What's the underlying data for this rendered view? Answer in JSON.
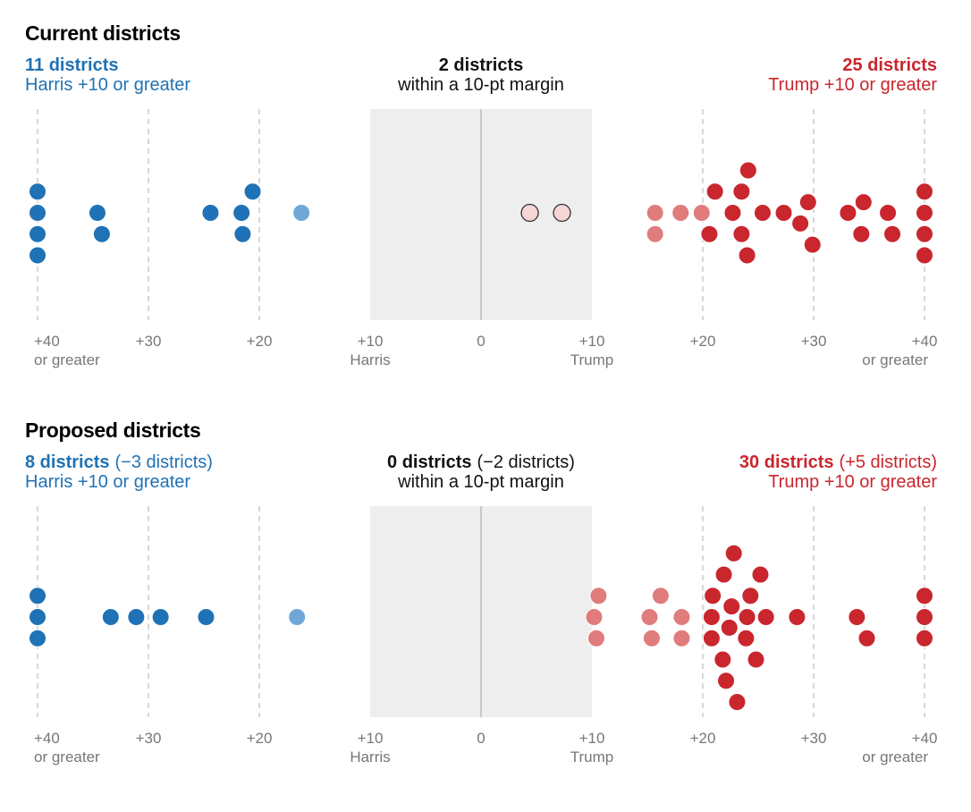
{
  "chart_data": [
    {
      "type": "scatter",
      "title": "Current districts",
      "left": {
        "count": "11 districts",
        "change": "",
        "desc": "Harris +10 or greater"
      },
      "middle": {
        "count": "2 districts",
        "change": "",
        "desc": "within a 10-pt margin"
      },
      "right": {
        "count": "25 districts",
        "change": "",
        "desc": "Trump +10 or greater"
      },
      "xlim": [
        -40,
        40
      ],
      "ticks": [
        {
          "v": -40,
          "l1": "+40",
          "l2": "or greater"
        },
        {
          "v": -30,
          "l1": "+30",
          "l2": ""
        },
        {
          "v": -20,
          "l1": "+20",
          "l2": ""
        },
        {
          "v": -10,
          "l1": "+10",
          "l2": "Harris"
        },
        {
          "v": 0,
          "l1": "0",
          "l2": ""
        },
        {
          "v": 10,
          "l1": "+10",
          "l2": "Trump"
        },
        {
          "v": 20,
          "l1": "+20",
          "l2": ""
        },
        {
          "v": 30,
          "l1": "+30",
          "l2": ""
        },
        {
          "v": 40,
          "l1": "+40",
          "l2": "or greater"
        }
      ],
      "values": [
        -40,
        -40,
        -40,
        -40,
        -34.6,
        -34.2,
        -24.4,
        -21.5,
        -21.6,
        -20.6,
        -16.2,
        4.4,
        7.3,
        15.7,
        15.7,
        18.0,
        19.9,
        20.6,
        21.1,
        22.7,
        23.5,
        24.0,
        24.1,
        23.5,
        25.4,
        27.3,
        28.8,
        29.5,
        29.9,
        33.1,
        34.5,
        34.3,
        36.7,
        37.1,
        40,
        40,
        40,
        40
      ]
    },
    {
      "type": "scatter",
      "title": "Proposed districts",
      "left": {
        "count": "8 districts",
        "change": "(−3 districts)",
        "desc": "Harris +10 or greater"
      },
      "middle": {
        "count": "0 districts",
        "change": "(−2 districts)",
        "desc": "within a 10-pt margin"
      },
      "right": {
        "count": "30 districts",
        "change": "(+5 districts)",
        "desc": "Trump +10 or greater"
      },
      "xlim": [
        -40,
        40
      ],
      "ticks": [
        {
          "v": -40,
          "l1": "+40",
          "l2": "or greater"
        },
        {
          "v": -30,
          "l1": "+30",
          "l2": ""
        },
        {
          "v": -20,
          "l1": "+20",
          "l2": ""
        },
        {
          "v": -10,
          "l1": "+10",
          "l2": "Harris"
        },
        {
          "v": 0,
          "l1": "0",
          "l2": ""
        },
        {
          "v": 10,
          "l1": "+10",
          "l2": "Trump"
        },
        {
          "v": 20,
          "l1": "+20",
          "l2": ""
        },
        {
          "v": 30,
          "l1": "+30",
          "l2": ""
        },
        {
          "v": 40,
          "l1": "+40",
          "l2": "or greater"
        }
      ],
      "values": [
        -40,
        -40,
        -40,
        -33.4,
        -31.1,
        -28.9,
        -24.8,
        -16.6,
        10.6,
        10.4,
        10.2,
        15.2,
        16.2,
        15.4,
        18.1,
        18.1,
        20.8,
        23.1,
        24.3,
        21.9,
        24.0,
        20.9,
        22.8,
        24.8,
        21.8,
        23.9,
        25.7,
        22.6,
        25.2,
        20.8,
        22.4,
        22.1,
        28.5,
        33.9,
        34.8,
        40,
        40,
        40
      ]
    }
  ],
  "colors": {
    "harris": "#1f72b5",
    "harris_lean": "#6fa8d6",
    "tossup": "#f6d5d6",
    "trump_lean": "#e07c7c",
    "trump": "#c9262e",
    "band": "#eeeeee"
  }
}
